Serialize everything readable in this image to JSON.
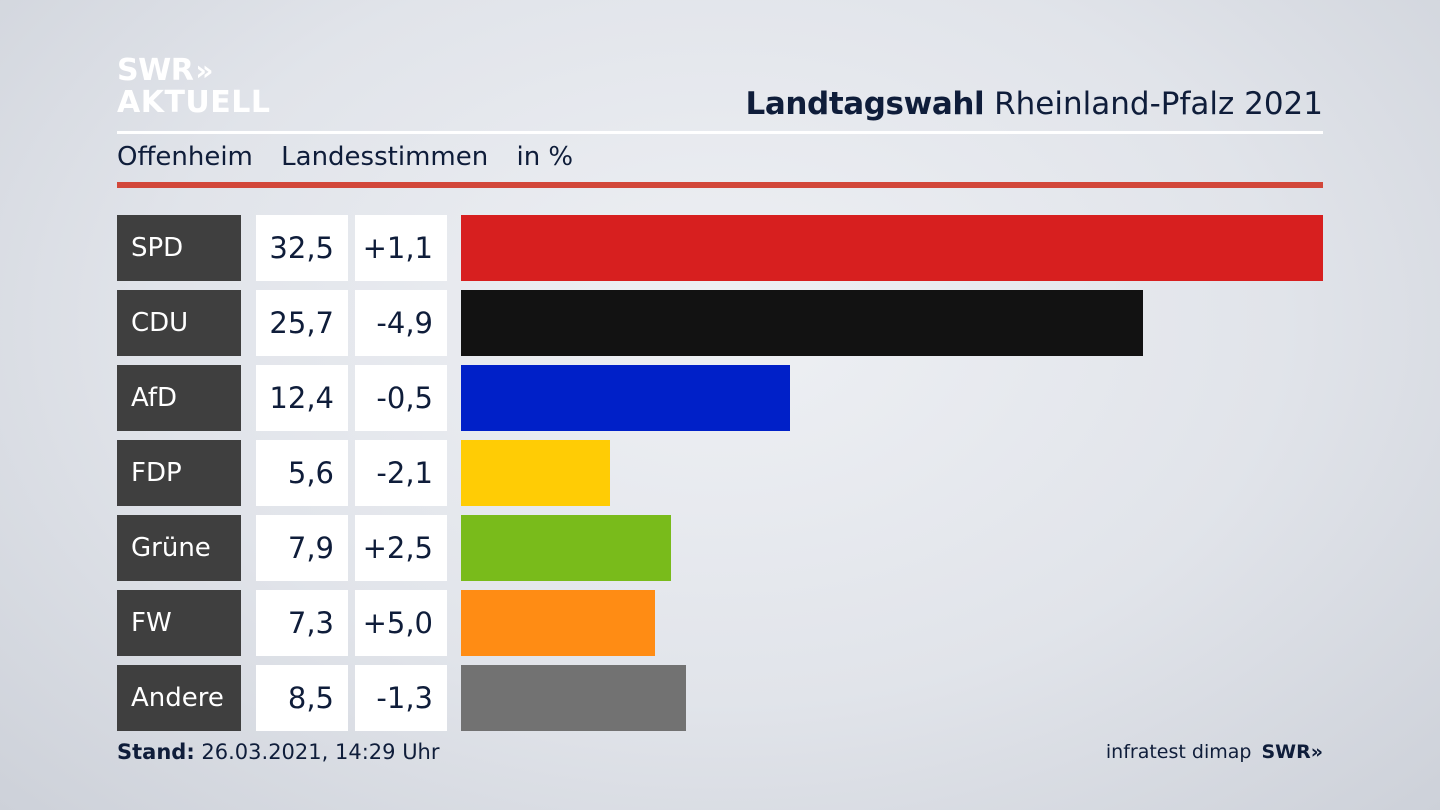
{
  "logo": {
    "line1": "SWR",
    "chevrons": "»",
    "line2": "AKTUELL"
  },
  "header": {
    "title_bold": "Landtagswahl",
    "title_rest": "Rheinland-Pfalz 2021",
    "location": "Offenheim",
    "vote_type": "Landesstimmen",
    "unit": "in %"
  },
  "chart_data": {
    "type": "bar",
    "orientation": "horizontal",
    "unit": "%",
    "categories": [
      "SPD",
      "CDU",
      "AfD",
      "FDP",
      "Grüne",
      "FW",
      "Andere"
    ],
    "values": [
      32.5,
      25.7,
      12.4,
      5.6,
      7.9,
      7.3,
      8.5
    ],
    "value_labels": [
      "32,5",
      "25,7",
      "12,4",
      "5,6",
      "7,9",
      "7,3",
      "8,5"
    ],
    "diff_labels": [
      "+1,1",
      "-4,9",
      "-0,5",
      "-2,1",
      "+2,5",
      "+5,0",
      "-1,3"
    ],
    "colors": [
      "#d71f1f",
      "#121212",
      "#0020c8",
      "#ffcc05",
      "#79bb1b",
      "#ff8c14",
      "#727272"
    ]
  },
  "footer": {
    "stand_label": "Stand:",
    "stand_value": "26.03.2021, 14:29 Uhr",
    "source": "infratest dimap",
    "brand": "SWR",
    "brand_chevrons": "»"
  }
}
